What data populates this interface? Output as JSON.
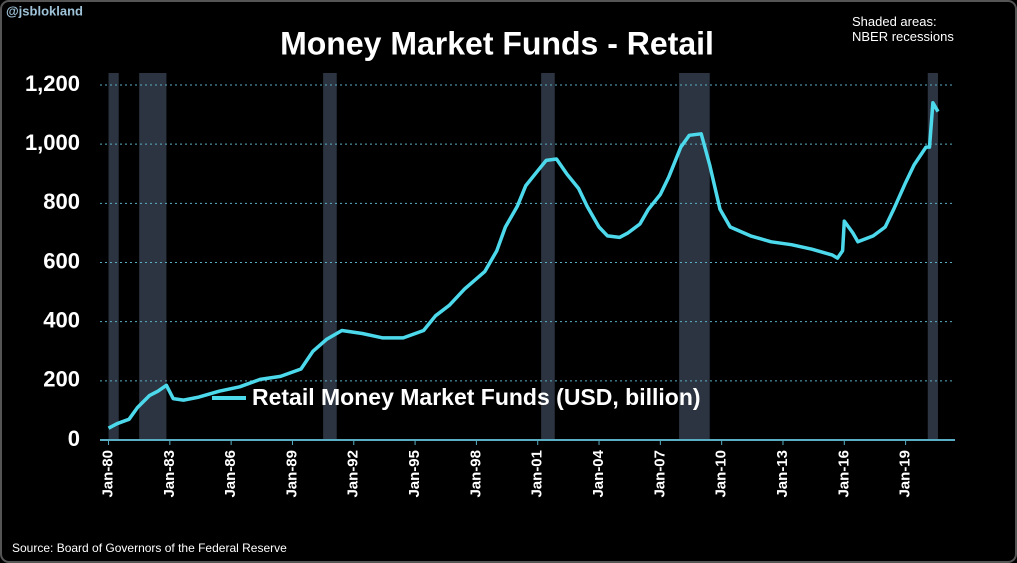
{
  "chart_data": {
    "type": "line",
    "title": "Money Market Funds - Retail",
    "watermark": "@jsblokland",
    "note": "Shaded areas: NBER recessions",
    "source": "Source: Board of Governors of the Federal Reserve",
    "x": [
      "1980-01",
      "1980-06",
      "1981-01",
      "1981-06",
      "1982-01",
      "1982-06",
      "1982-11",
      "1983-03",
      "1983-09",
      "1984-06",
      "1985-06",
      "1986-06",
      "1987-06",
      "1988-06",
      "1989-06",
      "1990-01",
      "1990-09",
      "1991-06",
      "1992-06",
      "1993-06",
      "1994-06",
      "1995-06",
      "1996-01",
      "1996-09",
      "1997-06",
      "1998-06",
      "1999-01",
      "1999-06",
      "2000-01",
      "2000-06",
      "2001-01",
      "2001-06",
      "2001-12",
      "2002-06",
      "2003-01",
      "2003-06",
      "2004-01",
      "2004-06",
      "2005-01",
      "2005-06",
      "2006-01",
      "2006-06",
      "2007-01",
      "2007-06",
      "2008-01",
      "2008-06",
      "2009-01",
      "2009-06",
      "2009-12",
      "2010-06",
      "2011-06",
      "2012-06",
      "2013-06",
      "2014-06",
      "2015-06",
      "2015-09",
      "2015-12",
      "2016-01",
      "2016-06",
      "2016-09",
      "2017-06",
      "2018-01",
      "2018-06",
      "2019-01",
      "2019-06",
      "2020-01",
      "2020-03",
      "2020-05",
      "2020-08"
    ],
    "series": [
      {
        "name": "Retail Money Market Funds (USD, billion)",
        "color": "#4dd9ec",
        "values": [
          40,
          55,
          70,
          110,
          150,
          165,
          185,
          140,
          135,
          145,
          165,
          180,
          205,
          215,
          240,
          300,
          340,
          370,
          360,
          345,
          345,
          370,
          420,
          455,
          510,
          570,
          640,
          720,
          790,
          860,
          910,
          945,
          950,
          900,
          850,
          790,
          720,
          690,
          685,
          700,
          730,
          780,
          830,
          890,
          990,
          1030,
          1035,
          930,
          780,
          720,
          690,
          670,
          660,
          645,
          625,
          615,
          640,
          740,
          700,
          670,
          690,
          720,
          780,
          870,
          930,
          990,
          990,
          1140,
          1110
        ]
      }
    ],
    "recessions": [
      {
        "start": "1980-01",
        "end": "1980-07"
      },
      {
        "start": "1981-07",
        "end": "1982-11"
      },
      {
        "start": "1990-07",
        "end": "1991-03"
      },
      {
        "start": "2001-03",
        "end": "2001-11"
      },
      {
        "start": "2007-12",
        "end": "2009-06"
      },
      {
        "start": "2020-02",
        "end": "2020-08"
      }
    ],
    "xlim": [
      "1979-08",
      "2021-06"
    ],
    "xticks": [
      {
        "value": "1980-01",
        "label": "Jan-80"
      },
      {
        "value": "1983-01",
        "label": "Jan-83"
      },
      {
        "value": "1986-01",
        "label": "Jan-86"
      },
      {
        "value": "1989-01",
        "label": "Jan-89"
      },
      {
        "value": "1992-01",
        "label": "Jan-92"
      },
      {
        "value": "1995-01",
        "label": "Jan-95"
      },
      {
        "value": "1998-01",
        "label": "Jan-98"
      },
      {
        "value": "2001-01",
        "label": "Jan-01"
      },
      {
        "value": "2004-01",
        "label": "Jan-04"
      },
      {
        "value": "2007-01",
        "label": "Jan-07"
      },
      {
        "value": "2010-01",
        "label": "Jan-10"
      },
      {
        "value": "2013-01",
        "label": "Jan-13"
      },
      {
        "value": "2016-01",
        "label": "Jan-16"
      },
      {
        "value": "2019-01",
        "label": "Jan-19"
      }
    ],
    "ylim": [
      0,
      1200
    ],
    "yticks": [
      0,
      200,
      400,
      600,
      800,
      {
        "value": 1000,
        "label": "1,000"
      },
      {
        "value": 1200,
        "label": "1,200"
      }
    ],
    "grid": true
  }
}
